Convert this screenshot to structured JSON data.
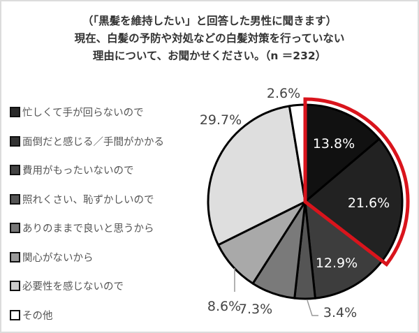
{
  "title": {
    "line1": "（「黒髪を維持したい」と回答した男性に聞きます）",
    "line2": "現在、白髪の予防や対処などの白髪対策を行っていない",
    "line3": "理由について、お聞かせください。（n ＝232）"
  },
  "colors": {
    "highlight_outline": "#d9141c",
    "slice_border": "#000000",
    "frame_border": "#dcdcdc"
  },
  "chart_data": {
    "type": "pie",
    "title": "（「黒髪を維持したい」と回答した男性に聞きます）現在、白髪の予防や対処などの白髪対策を行っていない理由について、お聞かせください。（n ＝232）",
    "n": 232,
    "start_angle": "12 o'clock",
    "direction": "clockwise",
    "legend_position": "left",
    "categories": [
      "忙しくて手が回らないので",
      "面倒だと感じる／手間がかかる",
      "費用がもったいないので",
      "照れくさい、恥ずかしいので",
      "ありのままで良いと思うから",
      "関心がないから",
      "必要性を感じないので",
      "その他"
    ],
    "values": [
      13.8,
      21.6,
      12.9,
      3.4,
      7.3,
      8.6,
      29.7,
      2.6
    ],
    "labels": [
      "13.8%",
      "21.6%",
      "12.9%",
      "3.4%",
      "7.3%",
      "8.6%",
      "29.7%",
      "2.6%"
    ],
    "slice_colors": [
      "#111111",
      "#222222",
      "#3d3d3d",
      "#555555",
      "#7a7a7a",
      "#a9a9a9",
      "#dedede",
      "#ffffff"
    ],
    "highlighted_slices": [
      "忙しくて手が回らないので",
      "面倒だと感じる／手間がかかる"
    ],
    "highlight_color": "#d9141c",
    "unit": "%"
  },
  "legend": {
    "items": [
      {
        "label": "忙しくて手が回らないので",
        "fill": "#2a2a2a"
      },
      {
        "label": "面倒だと感じる／手間がかかる",
        "fill": "#333333"
      },
      {
        "label": "費用がもったいないので",
        "fill": "#444444"
      },
      {
        "label": "照れくさい、恥ずかしいので",
        "fill": "#555555"
      },
      {
        "label": "ありのままで良いと思うから",
        "fill": "#777777"
      },
      {
        "label": "関心がないから",
        "fill": "#999999"
      },
      {
        "label": "必要性を感じないので",
        "fill": "#cccccc"
      },
      {
        "label": "その他",
        "fill": "#ffffff"
      }
    ]
  }
}
